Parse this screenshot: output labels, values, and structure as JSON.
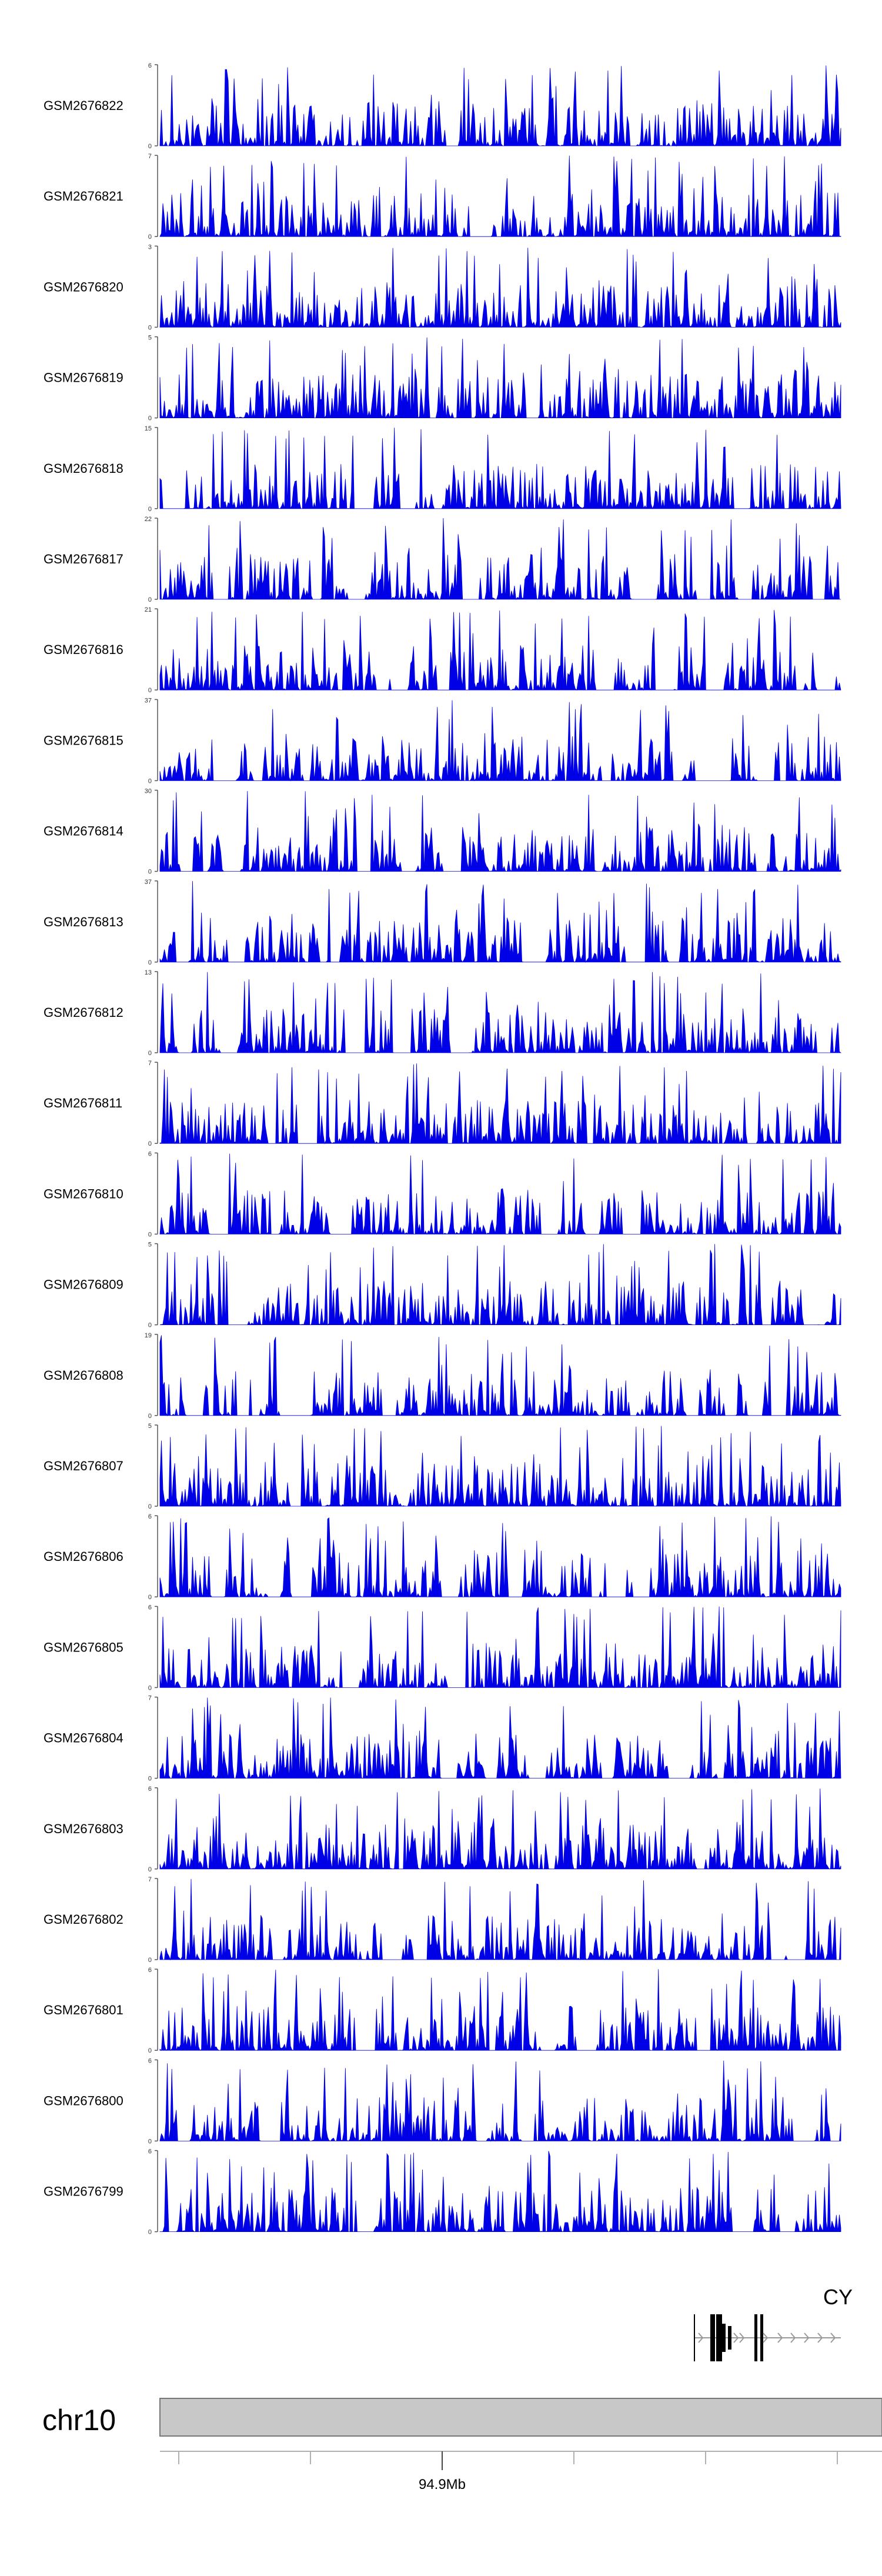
{
  "chart_data": {
    "type": "area",
    "title": "",
    "xlabel": "",
    "ylabel": "",
    "fill_color": "#0000e6",
    "tracks": [
      {
        "name": "GSM2676822",
        "ymax": 6,
        "tick_low": "0",
        "tick_high": "6",
        "seed": 11,
        "sparse": 0.15
      },
      {
        "name": "GSM2676821",
        "ymax": 7,
        "tick_low": "0",
        "tick_high": "7",
        "seed": 12,
        "sparse": 0.1
      },
      {
        "name": "GSM2676820",
        "ymax": 3,
        "tick_low": "0",
        "tick_high": "3",
        "seed": 13,
        "sparse": 0.0
      },
      {
        "name": "GSM2676819",
        "ymax": 5,
        "tick_low": "0",
        "tick_high": "5",
        "seed": 14,
        "sparse": 0.05
      },
      {
        "name": "GSM2676818",
        "ymax": 15,
        "tick_low": "0",
        "tick_high": "15",
        "seed": 15,
        "sparse": 0.25
      },
      {
        "name": "GSM2676817",
        "ymax": 22,
        "tick_low": "0",
        "tick_high": "22",
        "seed": 16,
        "sparse": 0.35
      },
      {
        "name": "GSM2676816",
        "ymax": 21,
        "tick_low": "0",
        "tick_high": "21",
        "seed": 17,
        "sparse": 0.35
      },
      {
        "name": "GSM2676815",
        "ymax": 37,
        "tick_low": "0",
        "tick_high": "37",
        "seed": 18,
        "sparse": 0.45
      },
      {
        "name": "GSM2676814",
        "ymax": 30,
        "tick_low": "0",
        "tick_high": "30",
        "seed": 19,
        "sparse": 0.35
      },
      {
        "name": "GSM2676813",
        "ymax": 37,
        "tick_low": "0",
        "tick_high": "37",
        "seed": 20,
        "sparse": 0.4
      },
      {
        "name": "GSM2676812",
        "ymax": 13,
        "tick_low": "0",
        "tick_high": "13",
        "seed": 21,
        "sparse": 0.25
      },
      {
        "name": "GSM2676811",
        "ymax": 7,
        "tick_low": "0",
        "tick_high": "7",
        "seed": 22,
        "sparse": 0.3
      },
      {
        "name": "GSM2676810",
        "ymax": 6,
        "tick_low": "0",
        "tick_high": "6",
        "seed": 23,
        "sparse": 0.15
      },
      {
        "name": "GSM2676809",
        "ymax": 5,
        "tick_low": "0",
        "tick_high": "5",
        "seed": 24,
        "sparse": 0.2
      },
      {
        "name": "GSM2676808",
        "ymax": 19,
        "tick_low": "0",
        "tick_high": "19",
        "seed": 25,
        "sparse": 0.3
      },
      {
        "name": "GSM2676807",
        "ymax": 5,
        "tick_low": "0",
        "tick_high": "5",
        "seed": 26,
        "sparse": 0.15
      },
      {
        "name": "GSM2676806",
        "ymax": 6,
        "tick_low": "0",
        "tick_high": "6",
        "seed": 27,
        "sparse": 0.25
      },
      {
        "name": "GSM2676805",
        "ymax": 6,
        "tick_low": "0",
        "tick_high": "6",
        "seed": 28,
        "sparse": 0.1
      },
      {
        "name": "GSM2676804",
        "ymax": 7,
        "tick_low": "0",
        "tick_high": "7",
        "seed": 29,
        "sparse": 0.25
      },
      {
        "name": "GSM2676803",
        "ymax": 6,
        "tick_low": "0",
        "tick_high": "6",
        "seed": 30,
        "sparse": 0.2
      },
      {
        "name": "GSM2676802",
        "ymax": 7,
        "tick_low": "0",
        "tick_high": "7",
        "seed": 31,
        "sparse": 0.25
      },
      {
        "name": "GSM2676801",
        "ymax": 6,
        "tick_low": "0",
        "tick_high": "6",
        "seed": 32,
        "sparse": 0.15
      },
      {
        "name": "GSM2676800",
        "ymax": 6,
        "tick_low": "0",
        "tick_high": "6",
        "seed": 33,
        "sparse": 0.25
      },
      {
        "name": "GSM2676799",
        "ymax": 6,
        "tick_low": "0",
        "tick_high": "6",
        "seed": 34,
        "sparse": 0.2
      }
    ],
    "gene_track": {
      "label": "CY",
      "strand": "+"
    },
    "ideogram": {
      "chromosome": "chr10",
      "color": "#c8c8c8"
    },
    "genome_axis": {
      "tick_label": "94.9Mb",
      "tick_count": 6
    }
  }
}
